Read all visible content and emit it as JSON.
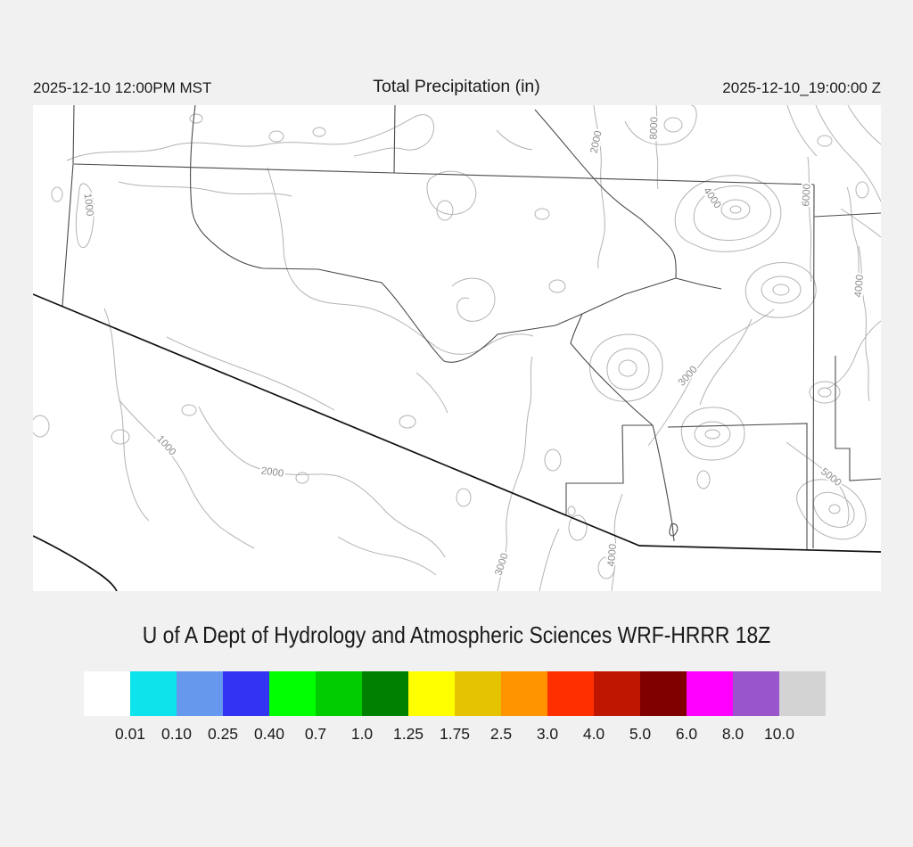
{
  "header": {
    "left_datetime": "2025-12-10 12:00PM MST",
    "title": "Total Precipitation (in)",
    "right_datetime": "2025-12-10_19:00:00 Z"
  },
  "caption": "U of A Dept of Hydrology and Atmospheric Sciences WRF-HRRR 18Z",
  "map": {
    "type": "terrain-contour-map",
    "contour_interval_units": "elevation",
    "contour_labels": [
      {
        "text": "1000"
      },
      {
        "text": "2000"
      },
      {
        "text": "8000"
      },
      {
        "text": "4000"
      },
      {
        "text": "6000"
      },
      {
        "text": "4000"
      },
      {
        "text": "3000"
      },
      {
        "text": "1000"
      },
      {
        "text": "2000"
      },
      {
        "text": "3000"
      },
      {
        "text": "4000"
      },
      {
        "text": "5000"
      }
    ]
  },
  "colorbar": {
    "colors": [
      "#FFFFFF",
      "#0DE3EB",
      "#6699EE",
      "#3333F3",
      "#00FF00",
      "#00CC00",
      "#008000",
      "#FFFF00",
      "#E6C300",
      "#FF9300",
      "#FF3000",
      "#BE1600",
      "#800000",
      "#FF00FF",
      "#9955CC",
      "#D3D3D3"
    ],
    "labels": [
      "0.01",
      "0.10",
      "0.25",
      "0.40",
      "0.7",
      "1.0",
      "1.25",
      "1.75",
      "2.5",
      "3.0",
      "4.0",
      "5.0",
      "6.0",
      "8.0",
      "10.0"
    ]
  }
}
